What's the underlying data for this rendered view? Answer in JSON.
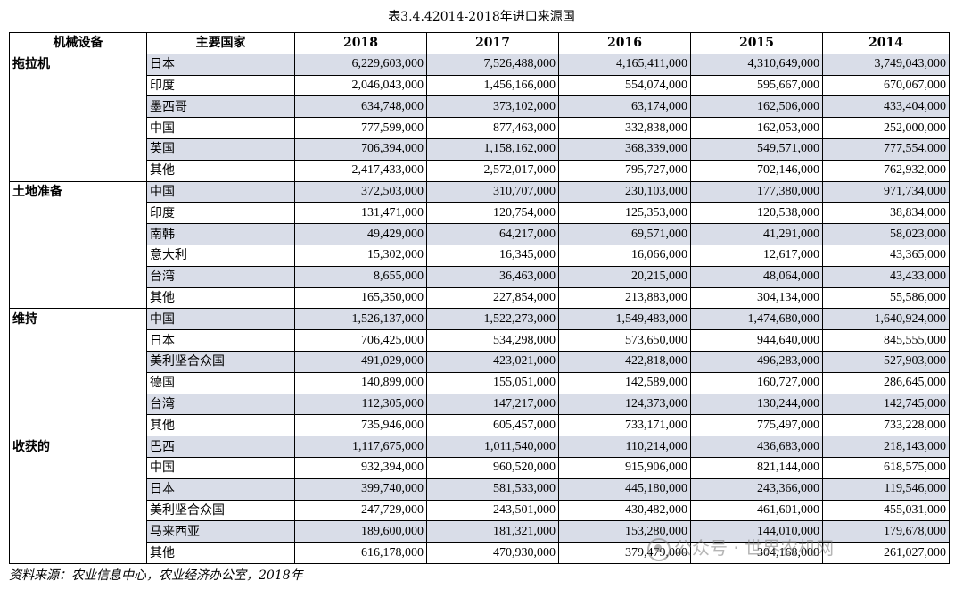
{
  "caption": "表3.4.42014-2018年进口来源国",
  "headers": [
    "机械设备",
    "主要国家",
    "2018",
    "2017",
    "2016",
    "2015",
    "2014"
  ],
  "groups": [
    {
      "category": "拖拉机",
      "rows": [
        {
          "country": "日本",
          "values": [
            "6,229,603,000",
            "7,526,488,000",
            "4,165,411,000",
            "4,310,649,000",
            "3,749,043,000"
          ]
        },
        {
          "country": "印度",
          "values": [
            "2,046,043,000",
            "1,456,166,000",
            "554,074,000",
            "595,667,000",
            "670,067,000"
          ]
        },
        {
          "country": "墨西哥",
          "values": [
            "634,748,000",
            "373,102,000",
            "63,174,000",
            "162,506,000",
            "433,404,000"
          ]
        },
        {
          "country": "中国",
          "values": [
            "777,599,000",
            "877,463,000",
            "332,838,000",
            "162,053,000",
            "252,000,000"
          ]
        },
        {
          "country": "英国",
          "values": [
            "706,394,000",
            "1,158,162,000",
            "368,339,000",
            "549,571,000",
            "777,554,000"
          ]
        },
        {
          "country": "其他",
          "values": [
            "2,417,433,000",
            "2,572,017,000",
            "795,727,000",
            "702,146,000",
            "762,932,000"
          ]
        }
      ]
    },
    {
      "category": "土地准备",
      "rows": [
        {
          "country": "中国",
          "values": [
            "372,503,000",
            "310,707,000",
            "230,103,000",
            "177,380,000",
            "971,734,000"
          ]
        },
        {
          "country": "印度",
          "values": [
            "131,471,000",
            "120,754,000",
            "125,353,000",
            "120,538,000",
            "38,834,000"
          ]
        },
        {
          "country": "南韩",
          "values": [
            "49,429,000",
            "64,217,000",
            "69,571,000",
            "41,291,000",
            "58,023,000"
          ]
        },
        {
          "country": "意大利",
          "values": [
            "15,302,000",
            "16,345,000",
            "16,066,000",
            "12,617,000",
            "43,365,000"
          ]
        },
        {
          "country": "台湾",
          "values": [
            "8,655,000",
            "36,463,000",
            "20,215,000",
            "48,064,000",
            "43,433,000"
          ]
        },
        {
          "country": "其他",
          "values": [
            "165,350,000",
            "227,854,000",
            "213,883,000",
            "304,134,000",
            "55,586,000"
          ]
        }
      ]
    },
    {
      "category": "维持",
      "rows": [
        {
          "country": "中国",
          "values": [
            "1,526,137,000",
            "1,522,273,000",
            "1,549,483,000",
            "1,474,680,000",
            "1,640,924,000"
          ]
        },
        {
          "country": "日本",
          "values": [
            "706,425,000",
            "534,298,000",
            "573,650,000",
            "944,640,000",
            "845,555,000"
          ]
        },
        {
          "country": "美利坚合众国",
          "values": [
            "491,029,000",
            "423,021,000",
            "422,818,000",
            "496,283,000",
            "527,903,000"
          ]
        },
        {
          "country": "德国",
          "values": [
            "140,899,000",
            "155,051,000",
            "142,589,000",
            "160,727,000",
            "286,645,000"
          ]
        },
        {
          "country": "台湾",
          "values": [
            "112,305,000",
            "147,217,000",
            "124,373,000",
            "130,244,000",
            "142,745,000"
          ]
        },
        {
          "country": "其他",
          "values": [
            "735,946,000",
            "605,457,000",
            "733,171,000",
            "775,497,000",
            "733,228,000"
          ]
        }
      ]
    },
    {
      "category": "收获的",
      "rows": [
        {
          "country": "巴西",
          "values": [
            "1,117,675,000",
            "1,011,540,000",
            "110,214,000",
            "436,683,000",
            "218,143,000"
          ]
        },
        {
          "country": "中国",
          "values": [
            "932,394,000",
            "960,520,000",
            "915,906,000",
            "821,144,000",
            "618,575,000"
          ]
        },
        {
          "country": "日本",
          "values": [
            "399,740,000",
            "581,533,000",
            "445,180,000",
            "243,366,000",
            "119,546,000"
          ]
        },
        {
          "country": "美利坚合众国",
          "values": [
            "247,729,000",
            "243,501,000",
            "430,482,000",
            "461,601,000",
            "455,031,000"
          ]
        },
        {
          "country": "马来西亚",
          "values": [
            "189,600,000",
            "181,321,000",
            "153,280,000",
            "144,010,000",
            "179,678,000"
          ]
        },
        {
          "country": "其他",
          "values": [
            "616,178,000",
            "470,930,000",
            "379,479,000",
            "304,168,000",
            "261,027,000"
          ]
        }
      ]
    }
  ],
  "source": "资料来源：农业信息中心，农业经济办公室，2018年",
  "watermark": "公众号 · 世界农机网",
  "colors": {
    "row_shade": "#d9dde8",
    "border": "#000000"
  }
}
